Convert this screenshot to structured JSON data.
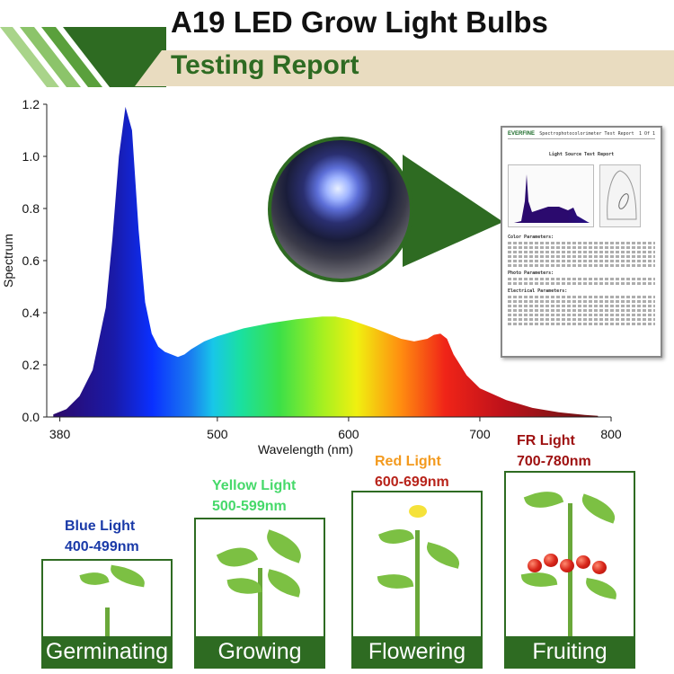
{
  "header": {
    "title": "A19 LED Grow Light Bulbs",
    "subtitle": "Testing Report",
    "accent_color": "#2e6b22",
    "banner_color": "#e9dcc0"
  },
  "chart_data": {
    "type": "area",
    "title": "",
    "xlabel": "Wavelength (nm)",
    "ylabel": "Spectrum",
    "xlim": [
      370,
      800
    ],
    "ylim": [
      0,
      1.2
    ],
    "x_ticks": [
      380,
      500,
      600,
      700,
      800
    ],
    "y_ticks": [
      0.0,
      0.2,
      0.4,
      0.6,
      0.8,
      1.0,
      1.2
    ],
    "fill": "wavelength-rainbow",
    "grid": false,
    "series": [
      {
        "x": [
          375,
          385,
          395,
          405,
          415,
          420,
          425,
          430,
          435,
          440,
          445,
          450,
          455,
          460,
          465,
          470,
          475,
          480,
          490,
          500,
          520,
          540,
          560,
          580,
          590,
          600,
          620,
          640,
          650,
          660,
          665,
          670,
          675,
          680,
          690,
          700,
          720,
          740,
          760,
          780,
          790
        ],
        "y": [
          0.01,
          0.03,
          0.08,
          0.18,
          0.42,
          0.68,
          1.0,
          1.19,
          1.1,
          0.72,
          0.44,
          0.32,
          0.27,
          0.25,
          0.24,
          0.23,
          0.24,
          0.26,
          0.29,
          0.31,
          0.34,
          0.36,
          0.375,
          0.385,
          0.385,
          0.375,
          0.34,
          0.3,
          0.29,
          0.3,
          0.315,
          0.32,
          0.3,
          0.24,
          0.16,
          0.11,
          0.065,
          0.035,
          0.018,
          0.008,
          0.004
        ]
      }
    ]
  },
  "test_report": {
    "brand": "EVERFINE",
    "heading": "Spectrophotocolorimeter Test Report",
    "page": "1 Of 1",
    "report_title": "Light Source Test Report",
    "sections": [
      "Color Parameters:",
      "Photo Parameters:",
      "Electrical Parameters:"
    ]
  },
  "stages": [
    {
      "label": "Blue Light",
      "range": "400-499nm",
      "name": "Germinating",
      "color": "#1a3aa8",
      "range_color": "#1a3aa8"
    },
    {
      "label": "Yellow Light",
      "range": "500-599nm",
      "name": "Growing",
      "color": "#46d96a",
      "range_color": "#46d96a"
    },
    {
      "label": "Red Light",
      "range": "600-699nm",
      "name": "Flowering",
      "color": "#f39a1e",
      "range_color": "#b8231a"
    },
    {
      "label": "FR Light",
      "range": "700-780nm",
      "name": "Fruiting",
      "color": "#9e1010",
      "range_color": "#9e1010"
    }
  ]
}
